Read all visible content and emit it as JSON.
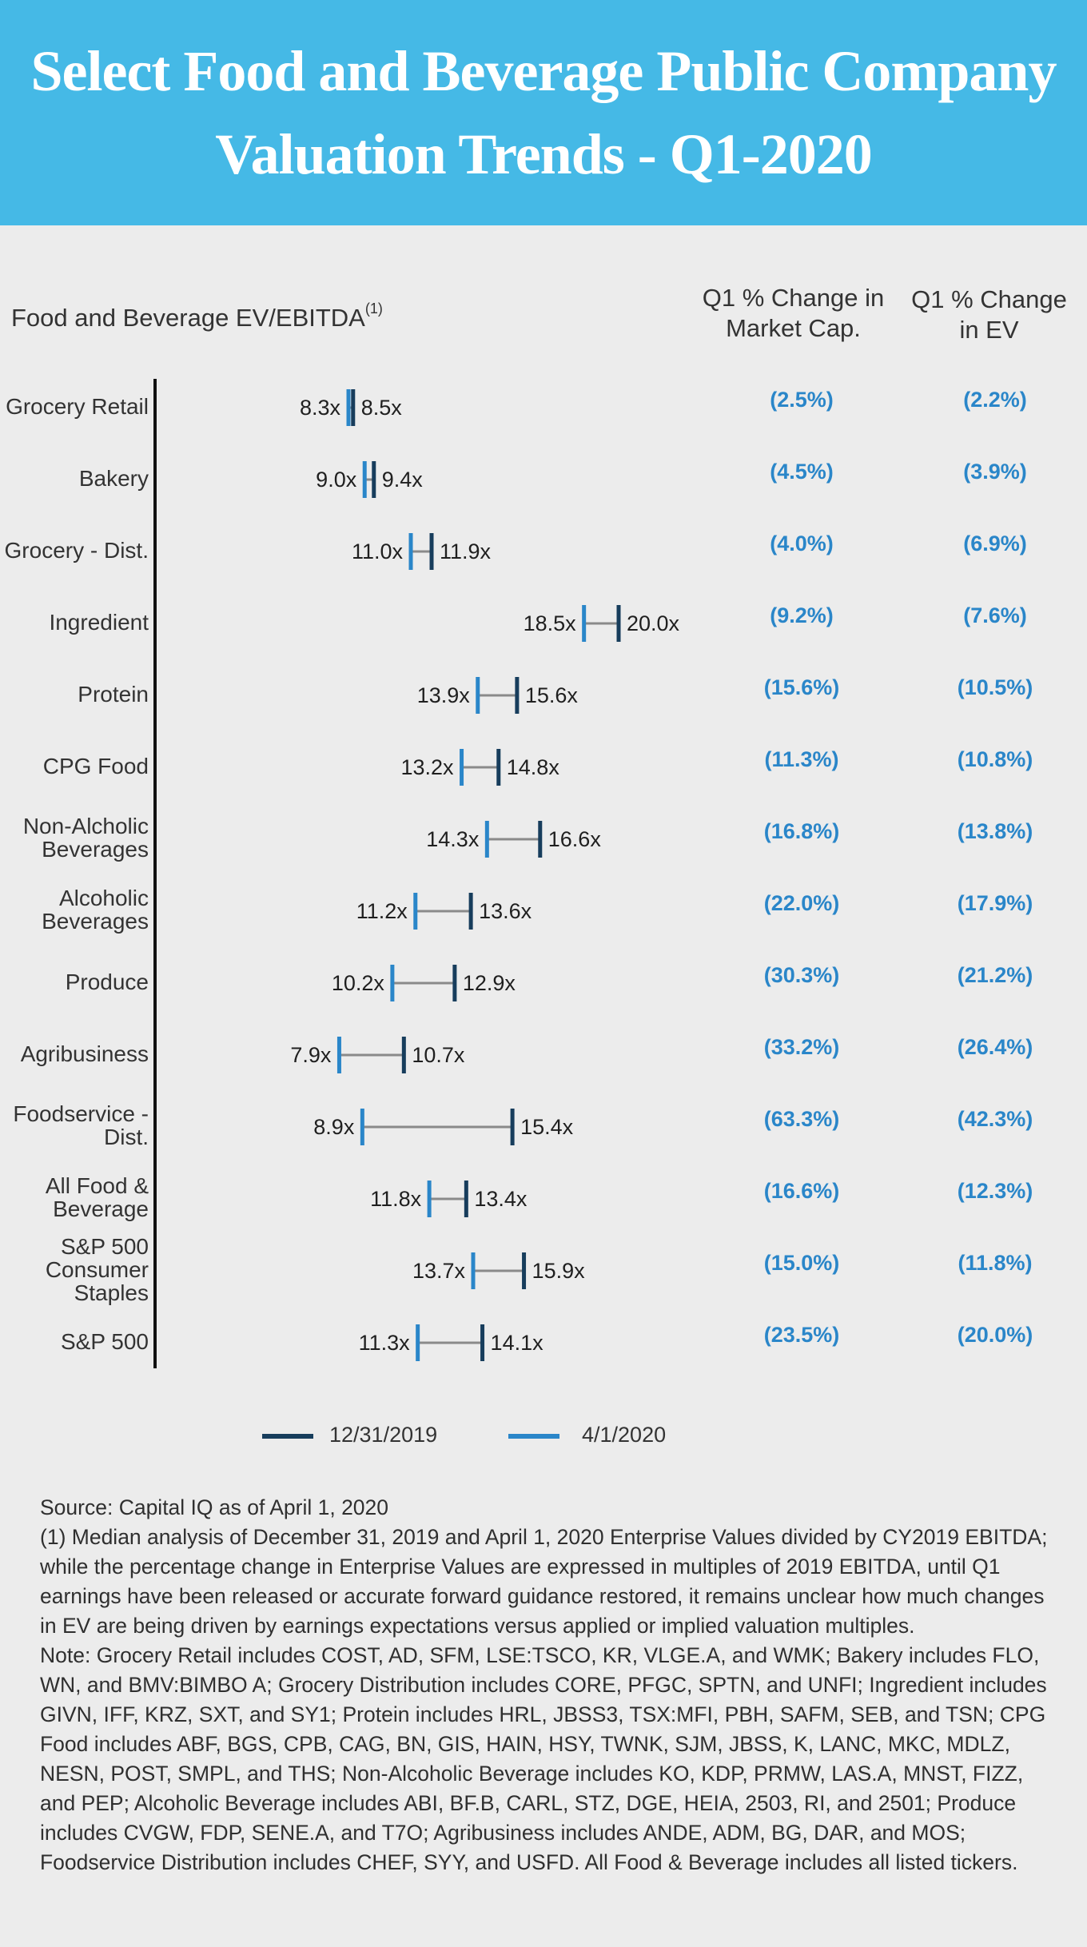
{
  "header": {
    "title_line1": "Select Food and Beverage Public Company",
    "title_line2": "Valuation Trends - Q1-2020"
  },
  "columns": {
    "ev_label": "Food and Beverage EV/EBITDA",
    "ev_note": "(1)",
    "mcap_label_line1": "Q1 % Change in",
    "mcap_label_line2": "Market Cap.",
    "evchg_label_line1": "Q1 % Change",
    "evchg_label_line2": "in EV"
  },
  "colors": {
    "dec_2019": "#173d5c",
    "apr_2020": "#2a86c9",
    "connector": "#8a8a8a",
    "header_bg": "#45b9e6",
    "pct_text": "#2a86c9"
  },
  "chart_data": {
    "type": "dumbbell",
    "title": "Select Food and Beverage Public Company Valuation Trends - Q1-2020",
    "xlabel": "Food and Beverage EV/EBITDA",
    "series": [
      {
        "name": "12/31/2019",
        "key": "dec"
      },
      {
        "name": "4/1/2020",
        "key": "apr"
      }
    ],
    "rows": [
      {
        "label": "Grocery Retail",
        "apr": 8.3,
        "dec": 8.5,
        "mcap": "(2.5%)",
        "ev": "(2.2%)"
      },
      {
        "label": "Bakery",
        "apr": 9.0,
        "dec": 9.4,
        "mcap": "(4.5%)",
        "ev": "(3.9%)"
      },
      {
        "label": "Grocery - Dist.",
        "apr": 11.0,
        "dec": 11.9,
        "mcap": "(4.0%)",
        "ev": "(6.9%)"
      },
      {
        "label": "Ingredient",
        "apr": 18.5,
        "dec": 20.0,
        "mcap": "(9.2%)",
        "ev": "(7.6%)"
      },
      {
        "label": "Protein",
        "apr": 13.9,
        "dec": 15.6,
        "mcap": "(15.6%)",
        "ev": "(10.5%)"
      },
      {
        "label": "CPG Food",
        "apr": 13.2,
        "dec": 14.8,
        "mcap": "(11.3%)",
        "ev": "(10.8%)"
      },
      {
        "label": "Non-Alcholic\nBeverages",
        "apr": 14.3,
        "dec": 16.6,
        "mcap": "(16.8%)",
        "ev": "(13.8%)"
      },
      {
        "label": "Alcoholic\nBeverages",
        "apr": 11.2,
        "dec": 13.6,
        "mcap": "(22.0%)",
        "ev": "(17.9%)"
      },
      {
        "label": "Produce",
        "apr": 10.2,
        "dec": 12.9,
        "mcap": "(30.3%)",
        "ev": "(21.2%)"
      },
      {
        "label": "Agribusiness",
        "apr": 7.9,
        "dec": 10.7,
        "mcap": "(33.2%)",
        "ev": "(26.4%)"
      },
      {
        "label": "Foodservice -\nDist.",
        "apr": 8.9,
        "dec": 15.4,
        "mcap": "(63.3%)",
        "ev": "(42.3%)"
      },
      {
        "label": "All Food &\nBeverage",
        "apr": 11.8,
        "dec": 13.4,
        "mcap": "(16.6%)",
        "ev": "(12.3%)"
      },
      {
        "label": "S&P 500\nConsumer\nStaples",
        "apr": 13.7,
        "dec": 15.9,
        "mcap": "(15.0%)",
        "ev": "(11.8%)"
      },
      {
        "label": "S&P 500",
        "apr": 11.3,
        "dec": 14.1,
        "mcap": "(23.5%)",
        "ev": "(20.0%)"
      }
    ]
  },
  "legend": {
    "dec_label": "12/31/2019",
    "apr_label": "4/1/2020"
  },
  "footnotes": {
    "source": "Source: Capital IQ as of April 1, 2020",
    "note1": "(1) Median analysis of December 31, 2019 and April 1, 2020 Enterprise Values divided by CY2019 EBITDA; while the percentage change in Enterprise Values are expressed in multiples of 2019 EBITDA, until Q1 earnings have been released or accurate forward guidance restored, it remains unclear how much changes in EV are being driven by earnings expectations versus applied or implied valuation multiples.",
    "note2": "Note: Grocery Retail includes COST, AD, SFM, LSE:TSCO, KR, VLGE.A, and WMK; Bakery includes FLO, WN, and BMV:BIMBO A; Grocery Distribution includes CORE, PFGC, SPTN, and UNFI; Ingredient includes GIVN, IFF, KRZ, SXT, and SY1; Protein includes HRL, JBSS3, TSX:MFI, PBH, SAFM, SEB, and TSN; CPG Food includes ABF, BGS, CPB, CAG, BN, GIS, HAIN, HSY, TWNK, SJM, JBSS, K, LANC, MKC, MDLZ, NESN, POST, SMPL, and THS; Non-Alcoholic Beverage includes KO, KDP, PRMW, LAS.A, MNST, FIZZ, and PEP; Alcoholic Beverage includes ABI, BF.B, CARL, STZ, DGE, HEIA, 2503, RI, and 2501; Produce includes CVGW, FDP, SENE.A, and T7O; Agribusiness includes ANDE, ADM, BG, DAR, and MOS; Foodservice Distribution includes CHEF, SYY, and USFD. All Food & Beverage includes all listed tickers."
  }
}
